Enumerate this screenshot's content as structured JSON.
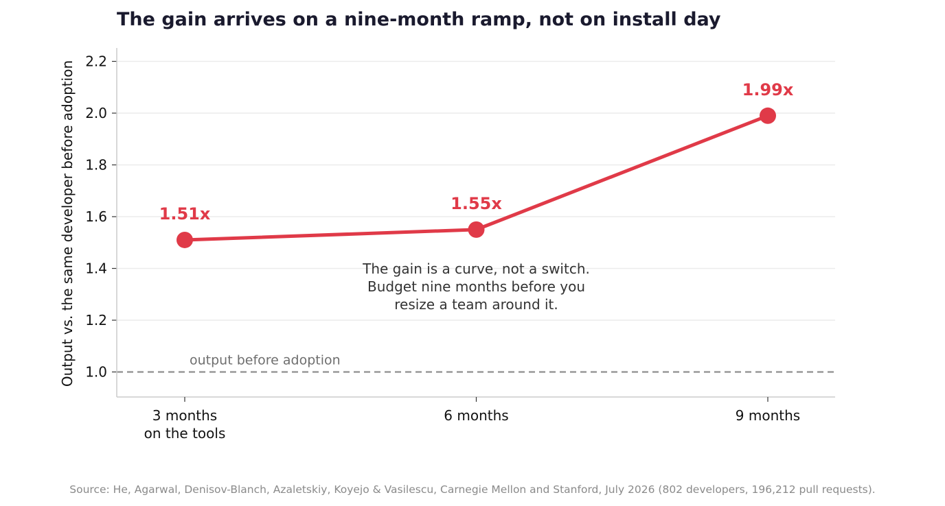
{
  "chart_data": {
    "type": "line",
    "title": "The gain arrives on a nine-month ramp, not on install day",
    "ylabel": "Output vs. the same developer before adoption",
    "xlabel": "",
    "categories": [
      [
        "3 months",
        "on the tools"
      ],
      [
        "6 months"
      ],
      [
        "9 months"
      ]
    ],
    "values": [
      1.51,
      1.55,
      1.99
    ],
    "data_labels": [
      "1.51x",
      "1.55x",
      "1.99x"
    ],
    "ylim": [
      0.9,
      2.25
    ],
    "yticks": [
      1.0,
      1.2,
      1.4,
      1.6,
      1.8,
      2.0,
      2.2
    ],
    "ytick_labels": [
      "1.0",
      "1.2",
      "1.4",
      "1.6",
      "1.8",
      "2.0",
      "2.2"
    ],
    "grid": "horizontal",
    "reference_line": {
      "value": 1.0,
      "label": "output before adoption",
      "style": "dashed",
      "color": "#999999"
    },
    "annotation": {
      "lines": [
        "The gain is a curve, not a switch.",
        "Budget nine months before you",
        "resize a team around it."
      ]
    },
    "colors": {
      "series": "#e03a48",
      "grid": "#ececec",
      "axis": "#cccccc"
    }
  },
  "source": "Source: He, Agarwal, Denisov-Blanch, Azaletskiy, Koyejo & Vasilescu, Carnegie Mellon and Stanford, July 2026 (802 developers, 196,212 pull requests)."
}
